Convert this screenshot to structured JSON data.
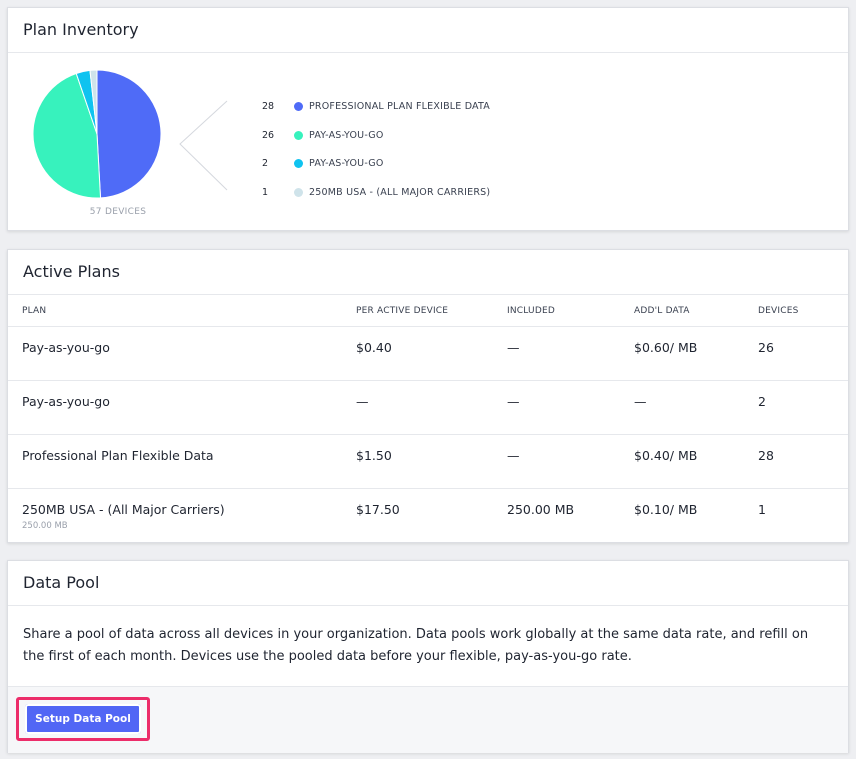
{
  "plan_inventory": {
    "title": "Plan Inventory",
    "total_label": "57 DEVICES",
    "legend": [
      {
        "count": "28",
        "label": "PROFESSIONAL PLAN FLEXIBLE DATA",
        "color": "#4f6bf7"
      },
      {
        "count": "26",
        "label": "PAY-AS-YOU-GO",
        "color": "#37f2bd"
      },
      {
        "count": "2",
        "label": "PAY-AS-YOU-GO",
        "color": "#0fc3f0"
      },
      {
        "count": "1",
        "label": "250MB USA - (ALL MAJOR CARRIERS)",
        "color": "#cfe3ea"
      }
    ]
  },
  "chart_data": {
    "type": "pie",
    "categories": [
      "PROFESSIONAL PLAN FLEXIBLE DATA",
      "PAY-AS-YOU-GO",
      "PAY-AS-YOU-GO",
      "250MB USA - (ALL MAJOR CARRIERS)"
    ],
    "values": [
      28,
      26,
      2,
      1
    ],
    "colors": [
      "#4f6bf7",
      "#37f2bd",
      "#0fc3f0",
      "#cfe3ea"
    ],
    "legend_position": "right"
  },
  "active_plans": {
    "title": "Active Plans",
    "headers": [
      "PLAN",
      "PER ACTIVE DEVICE",
      "INCLUDED",
      "ADD'L DATA",
      "DEVICES"
    ],
    "rows": [
      {
        "plan": "Pay-as-you-go",
        "sub": "",
        "per_device": "$0.40",
        "included": "—",
        "addl": "$0.60/ MB",
        "devices": "26"
      },
      {
        "plan": "Pay-as-you-go",
        "sub": "",
        "per_device": "—",
        "included": "—",
        "addl": "—",
        "devices": "2"
      },
      {
        "plan": "Professional Plan Flexible Data",
        "sub": "",
        "per_device": "$1.50",
        "included": "—",
        "addl": "$0.40/ MB",
        "devices": "28"
      },
      {
        "plan": "250MB USA - (All Major Carriers)",
        "sub": "250.00 MB",
        "per_device": "$17.50",
        "included": "250.00 MB",
        "addl": "$0.10/ MB",
        "devices": "1"
      }
    ]
  },
  "data_pool": {
    "title": "Data Pool",
    "description": "Share a pool of data across all devices in your organization. Data pools work globally at the same data rate, and refill on the first of each month. Devices use the pooled data before your flexible, pay-as-you-go rate.",
    "button_label": "Setup Data Pool",
    "highlight_color": "#ec2d6a",
    "button_color": "#5166f5"
  }
}
